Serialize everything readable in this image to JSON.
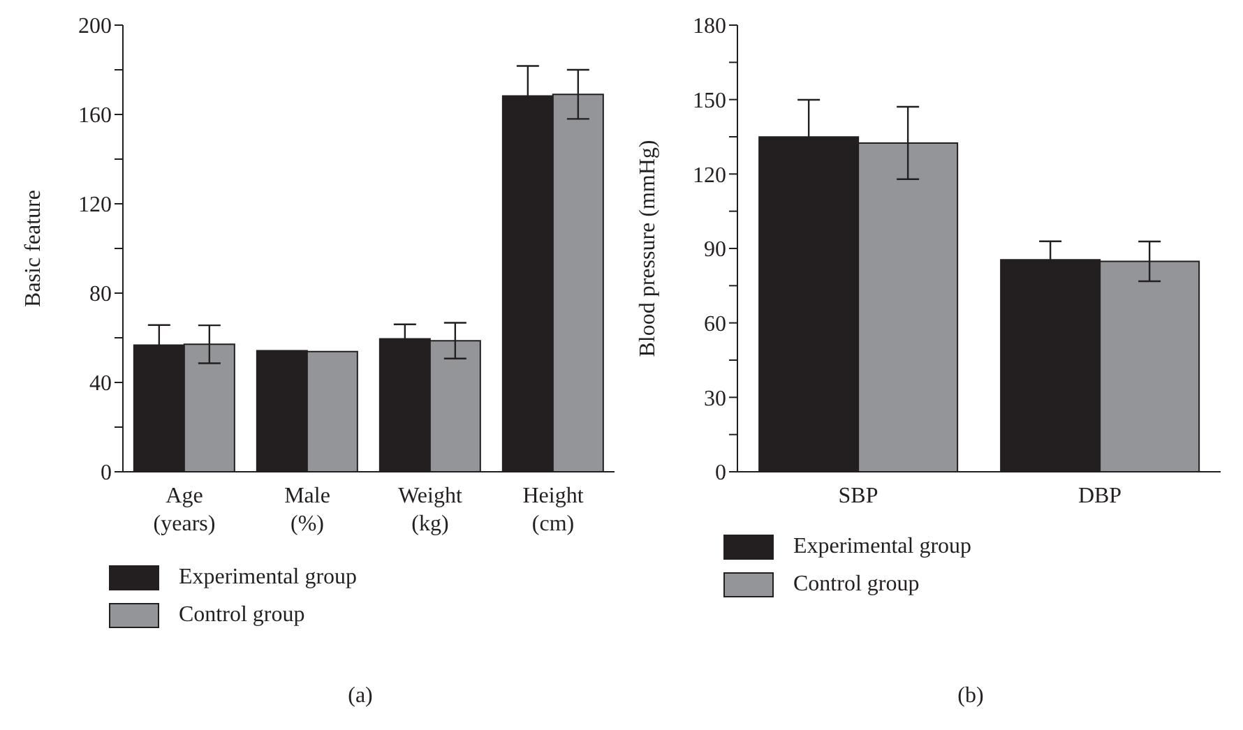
{
  "chart_data": [
    {
      "type": "bar",
      "ylabel": "Basic feature",
      "categories": [
        "Age\n(years)",
        "Male\n(%)",
        "Weight\n(kg)",
        "Height\n(cm)"
      ],
      "series": [
        {
          "name": "Experimental group",
          "color": "#231f20",
          "values": [
            56.7,
            54.2,
            59.5,
            168.3
          ],
          "errors": [
            9,
            null,
            6.5,
            13.4
          ]
        },
        {
          "name": "Control group",
          "color": "#939598",
          "values": [
            57.1,
            53.8,
            58.7,
            169
          ],
          "errors": [
            8.5,
            null,
            8,
            11
          ]
        }
      ],
      "ylim": [
        0,
        200
      ],
      "yticks": [
        0,
        {
          "value": 20,
          "label": null
        },
        40,
        {
          "value": 60,
          "label": null
        },
        80,
        {
          "value": 100,
          "label": null
        },
        120,
        {
          "value": 140,
          "label": null
        },
        160,
        {
          "value": 180,
          "label": null
        },
        200
      ],
      "grid": false,
      "legend": "bottom left",
      "annotations": [
        "(a)"
      ]
    },
    {
      "type": "bar",
      "ylabel": "Blood pressure (mmHg)",
      "categories": [
        "SBP",
        "DBP"
      ],
      "series": [
        {
          "name": "Experimental group",
          "color": "#231f20",
          "values": [
            134.9,
            85.4
          ],
          "errors": [
            15,
            7.5
          ]
        },
        {
          "name": "Control group",
          "color": "#939598",
          "values": [
            132.5,
            84.8
          ],
          "errors": [
            14.6,
            8
          ]
        }
      ],
      "ylim": [
        0,
        180
      ],
      "yticks": [
        0,
        {
          "value": 15,
          "label": null
        },
        30,
        {
          "value": 45,
          "label": null
        },
        60,
        {
          "value": 75,
          "label": null
        },
        90,
        {
          "value": 105,
          "label": null
        },
        120,
        {
          "value": 135,
          "label": null
        },
        150,
        {
          "value": 165,
          "label": null
        },
        180
      ],
      "grid": false,
      "legend": "bottom left",
      "annotations": [
        "(b)"
      ]
    }
  ]
}
